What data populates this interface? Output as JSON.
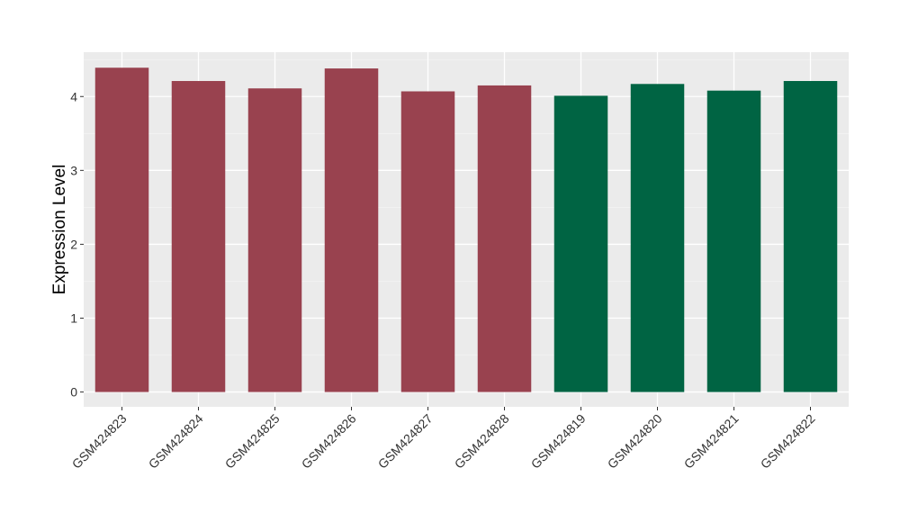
{
  "chart_data": {
    "type": "bar",
    "title": "",
    "xlabel": "",
    "ylabel": "Expression Level",
    "ylim": [
      -0.2,
      4.6
    ],
    "yticks": [
      0,
      1,
      2,
      3,
      4
    ],
    "grid": true,
    "panel_background": "#EBEBEB",
    "categories": [
      "GSM424823",
      "GSM424824",
      "GSM424825",
      "GSM424826",
      "GSM424827",
      "GSM424828",
      "GSM424819",
      "GSM424820",
      "GSM424821",
      "GSM424822"
    ],
    "values": [
      4.39,
      4.21,
      4.11,
      4.38,
      4.07,
      4.15,
      4.01,
      4.17,
      4.08,
      4.21
    ],
    "bar_colors": [
      "#99424F",
      "#99424F",
      "#99424F",
      "#99424F",
      "#99424F",
      "#99424F",
      "#006443",
      "#006443",
      "#006443",
      "#006443"
    ]
  }
}
